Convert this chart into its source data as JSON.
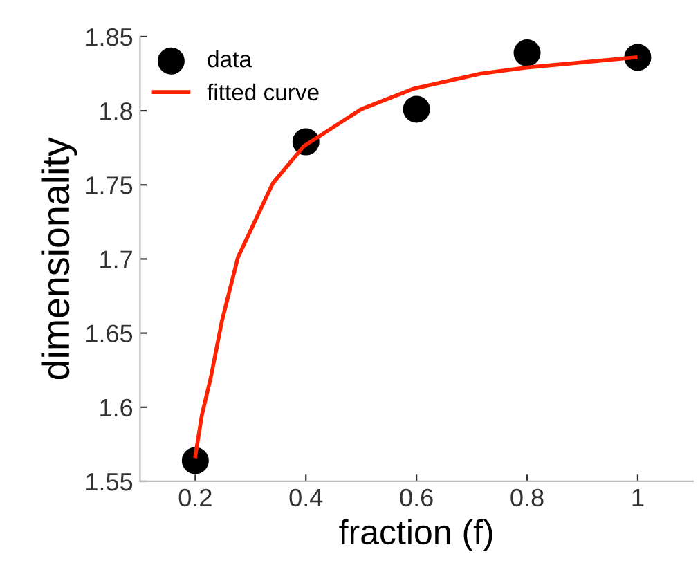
{
  "chart_data": {
    "type": "scatter",
    "xlabel": "fraction (f)",
    "ylabel": "dimensionality",
    "xlim": [
      0.1,
      1.1
    ],
    "xticks": [
      0.2,
      0.4,
      0.6,
      0.8,
      1
    ],
    "ylim": [
      1.55,
      1.85
    ],
    "yticks": [
      1.55,
      1.6,
      1.65,
      1.7,
      1.75,
      1.8,
      1.85
    ],
    "grid": false,
    "legend": "top left",
    "series": [
      {
        "name": "data",
        "marker": "circle",
        "color": "#000000",
        "x": [
          0.2,
          0.4,
          0.6,
          0.8,
          1
        ],
        "values": [
          1.564,
          1.779,
          1.801,
          1.839,
          1.836
        ]
      },
      {
        "name": "fitted curve",
        "type": "line",
        "marker": "none",
        "line_style": "solid",
        "color": "#ff2200",
        "x": [
          0.2,
          0.212,
          0.228,
          0.248,
          0.277,
          0.34,
          0.396,
          0.5,
          0.596,
          0.716,
          0.796,
          0.996
        ],
        "values": [
          1.567,
          1.595,
          1.62,
          1.658,
          1.701,
          1.751,
          1.776,
          1.801,
          1.815,
          1.825,
          1.829,
          1.836
        ]
      }
    ]
  }
}
